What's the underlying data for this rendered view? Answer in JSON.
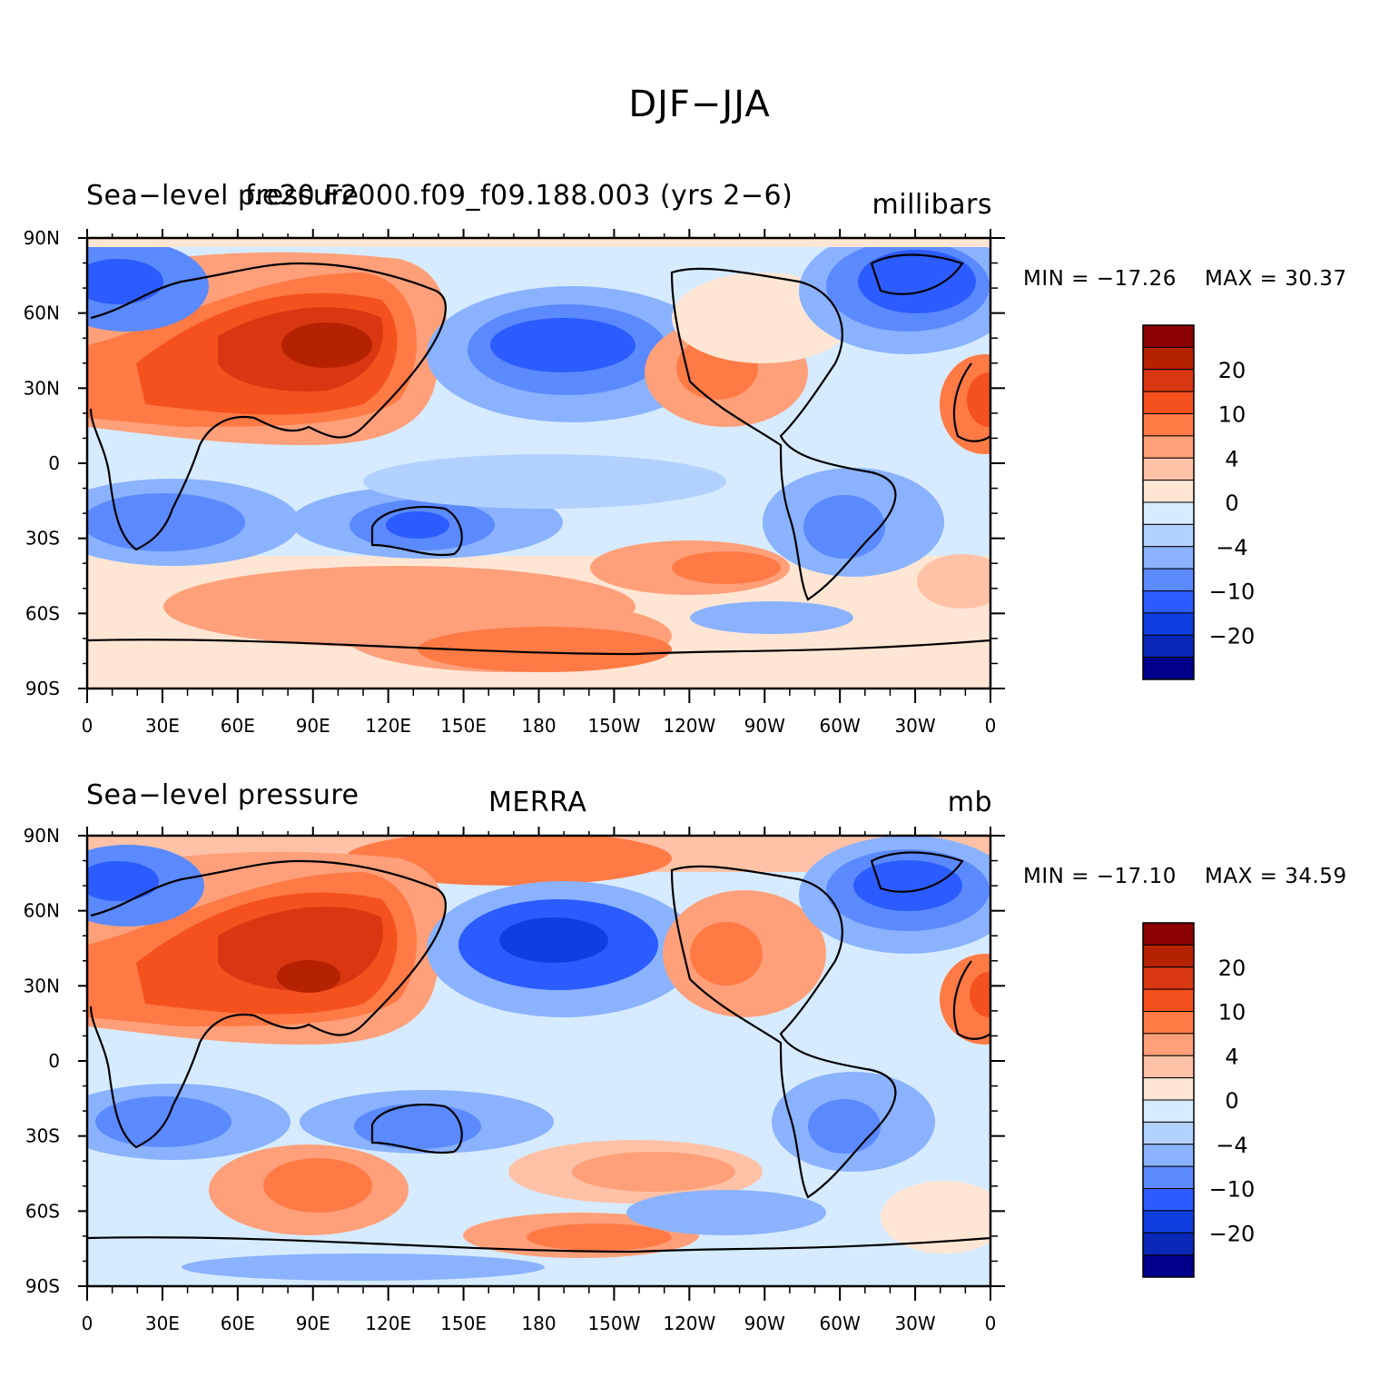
{
  "figure": {
    "title": "DJF−JJA"
  },
  "panels": [
    {
      "left_string": "Sea−level pressure",
      "center_string": "f.e20.F2000.f09_f09.188.003 (yrs 2−6)",
      "right_string": "millibars",
      "min_label": "MIN = −17.26",
      "max_label": "MAX =   30.37"
    },
    {
      "left_string": "Sea−level pressure",
      "center_string": "MERRA",
      "right_string": "mb",
      "min_label": "MIN = −17.10",
      "max_label": "MAX =   34.59"
    }
  ],
  "axes": {
    "lat_labels": [
      "90N",
      "60N",
      "30N",
      "0",
      "30S",
      "60S",
      "90S"
    ],
    "lon_labels": [
      "0",
      "30E",
      "60E",
      "90E",
      "120E",
      "150E",
      "180",
      "150W",
      "120W",
      "90W",
      "60W",
      "30W",
      "0"
    ]
  },
  "colorbar": {
    "labels": [
      "20",
      "10",
      "4",
      "0",
      "−4",
      "−10",
      "−20"
    ],
    "colors": [
      "#8b0000",
      "#b52200",
      "#d93712",
      "#f4511e",
      "#ff7a45",
      "#ffa07a",
      "#ffc2a6",
      "#ffe6d4",
      "#d6ebff",
      "#b3d1ff",
      "#8ab2ff",
      "#5b8aff",
      "#2c5cff",
      "#0f3fe0",
      "#0a28b8",
      "#00008b"
    ]
  },
  "chart_data": [
    {
      "type": "heatmap",
      "title": "f.e20.F2000.f09_f09.188.003 (yrs 2−6)",
      "variable": "Sea−level pressure",
      "units": "millibars",
      "min": -17.26,
      "max": 30.37
    },
    {
      "type": "heatmap",
      "title": "MERRA",
      "variable": "Sea−level pressure",
      "units": "mb",
      "min": -17.1,
      "max": 34.59
    }
  ]
}
